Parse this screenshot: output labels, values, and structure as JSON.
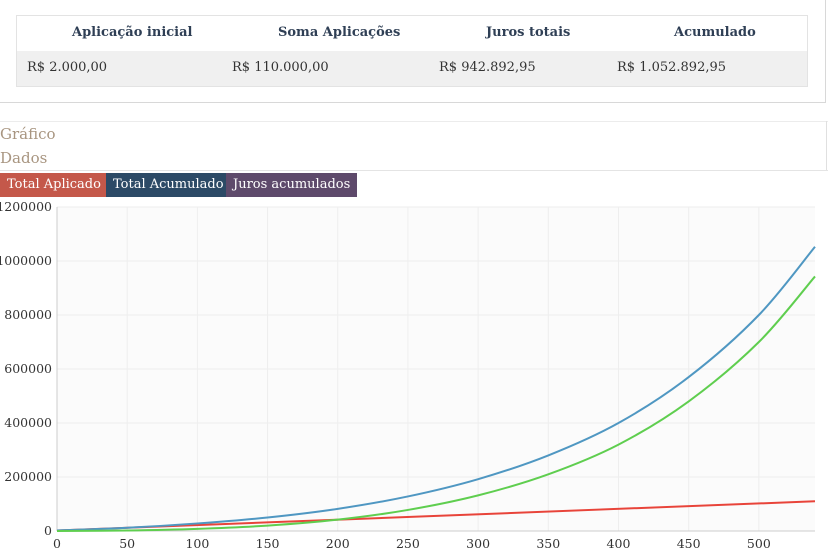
{
  "summary": {
    "headers": [
      "Aplicação inicial",
      "Soma Aplicações",
      "Juros totais",
      "Acumulado"
    ],
    "values": [
      "R$ 2.000,00",
      "R$ 110.000,00",
      "R$ 942.892,95",
      "R$ 1.052.892,95"
    ]
  },
  "section": {
    "title1": "Gráfico",
    "title2": "Dados"
  },
  "legend": [
    {
      "label": "Total Aplicado",
      "color": "#c4584a"
    },
    {
      "label": "Total Acumulado",
      "color": "#2c4a66"
    },
    {
      "label": "Juros acumulados",
      "color": "#5e4a6b"
    }
  ],
  "chart_data": {
    "type": "line",
    "xlim": [
      0,
      540
    ],
    "ylim": [
      0,
      1200000
    ],
    "x_ticks": [
      0,
      50,
      100,
      150,
      200,
      250,
      300,
      350,
      400,
      450,
      500
    ],
    "y_ticks": [
      0,
      200000,
      400000,
      600000,
      800000,
      1000000,
      1200000
    ],
    "grid": true,
    "series": [
      {
        "name": "Total Aplicado",
        "color": "#e8443a",
        "x": [
          0,
          540
        ],
        "y": [
          2000,
          110000
        ]
      },
      {
        "name": "Total Acumulado",
        "color": "#4f97c2",
        "x": [
          0,
          50,
          100,
          150,
          200,
          250,
          300,
          350,
          400,
          450,
          500,
          540
        ],
        "y": [
          2000,
          12000,
          28000,
          50000,
          82000,
          128000,
          192000,
          280000,
          400000,
          570000,
          800000,
          1052893
        ]
      },
      {
        "name": "Juros acumulados",
        "color": "#5fce4f",
        "x": [
          0,
          50,
          100,
          150,
          200,
          250,
          300,
          350,
          400,
          450,
          500,
          540
        ],
        "y": [
          0,
          2000,
          8000,
          20000,
          42000,
          78000,
          132000,
          210000,
          320000,
          480000,
          700000,
          942893
        ]
      }
    ]
  }
}
